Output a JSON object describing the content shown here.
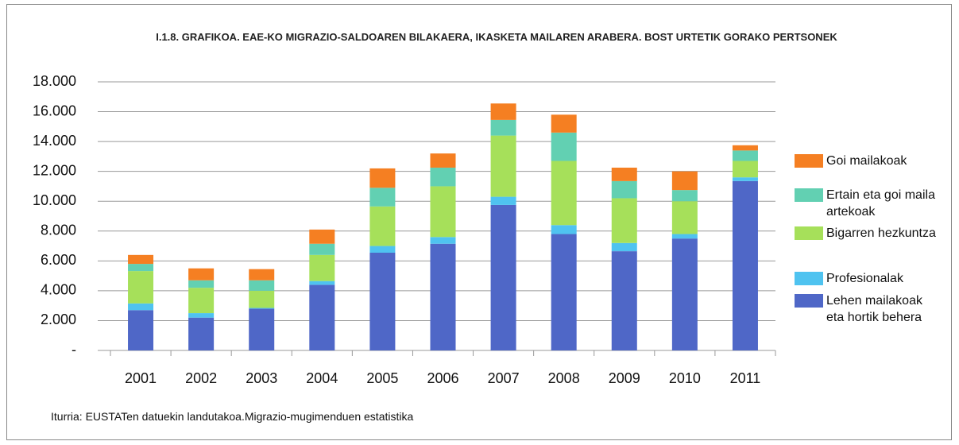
{
  "chart_data": {
    "type": "stacked-bar",
    "title": "I.1.8. GRAFIKOA. EAE-KO MIGRAZIO-SALDOAREN BILAKAERA, IKASKETA MAILAREN ARABERA. BOST URTETIK GORAKO PERTSONEK",
    "categories": [
      "2001",
      "2002",
      "2003",
      "2004",
      "2005",
      "2006",
      "2007",
      "2008",
      "2009",
      "2010",
      "2011"
    ],
    "series": [
      {
        "name": "Lehen mailakoak eta hortik behera",
        "color": "#4f67c7",
        "values": [
          2700,
          2200,
          2800,
          4400,
          6550,
          7150,
          9750,
          7800,
          6650,
          7500,
          11350
        ]
      },
      {
        "name": "Profesionalak",
        "color": "#4fc3f0",
        "values": [
          450,
          300,
          50,
          250,
          450,
          450,
          550,
          600,
          550,
          300,
          250
        ]
      },
      {
        "name": "Bigarren hezkuntza",
        "color": "#a6e05a",
        "values": [
          2170,
          1700,
          1150,
          1750,
          2650,
          3400,
          4100,
          4300,
          3000,
          2200,
          1100
        ]
      },
      {
        "name": "Ertain eta goi maila artekoak",
        "color": "#62d0b2",
        "values": [
          480,
          500,
          700,
          750,
          1250,
          1250,
          1050,
          1900,
          1150,
          750,
          700
        ]
      },
      {
        "name": "Goi mailakoak",
        "color": "#f57f22",
        "values": [
          600,
          800,
          750,
          950,
          1300,
          950,
          1100,
          1200,
          900,
          1250,
          350
        ]
      }
    ],
    "ylim": [
      0,
      18000
    ],
    "yticks": [
      {
        "value": 0,
        "label": "-"
      },
      {
        "value": 2000,
        "label": "2.000"
      },
      {
        "value": 4000,
        "label": "4.000"
      },
      {
        "value": 6000,
        "label": "6.000"
      },
      {
        "value": 8000,
        "label": "8.000"
      },
      {
        "value": 10000,
        "label": "10.000"
      },
      {
        "value": 12000,
        "label": "12.000"
      },
      {
        "value": 14000,
        "label": "14.000"
      },
      {
        "value": 16000,
        "label": "16.000"
      },
      {
        "value": 18000,
        "label": "18.000"
      }
    ],
    "grid": true,
    "source": "Iturria: EUSTATen datuekin landutakoa.Migrazio-mugimenduen estatistika"
  }
}
